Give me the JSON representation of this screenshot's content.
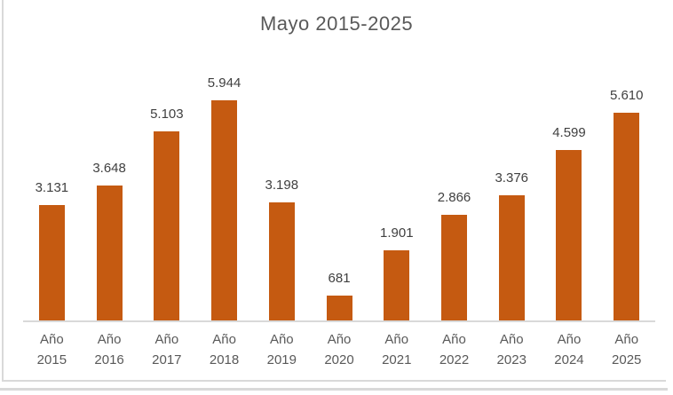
{
  "chart_data": {
    "type": "bar",
    "title": "Mayo 2015-2025",
    "categories": [
      "Año 2015",
      "Año 2016",
      "Año 2017",
      "Año 2018",
      "Año 2019",
      "Año 2020",
      "Año 2021",
      "Año 2022",
      "Año 2023",
      "Año 2024",
      "Año 2025"
    ],
    "values": [
      3131,
      3648,
      5103,
      5944,
      3198,
      681,
      1901,
      2866,
      3376,
      4599,
      5610
    ],
    "value_labels": [
      "3.131",
      "3.648",
      "5.103",
      "5.944",
      "3.198",
      "681",
      "1.901",
      "2.866",
      "3.376",
      "4.599",
      "5.610"
    ],
    "xlabel": "",
    "ylabel": "",
    "ylim": [
      0,
      6000
    ],
    "grid": false,
    "legend_position": "none",
    "colors": {
      "bar": "#c55a11",
      "axis_line": "#d9d9d9",
      "title_text": "#595959",
      "data_label_text": "#404040",
      "axis_label_text": "#595959",
      "frame_border": "#d9d9d9",
      "background": "#ffffff"
    }
  }
}
